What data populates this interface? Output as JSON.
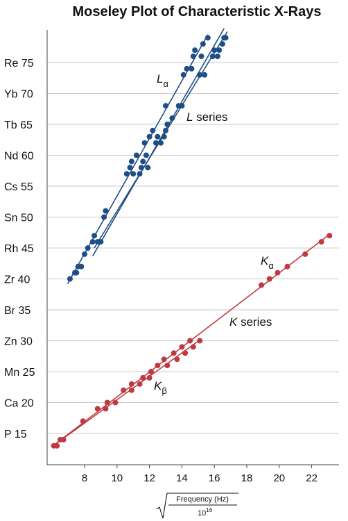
{
  "chart_data": {
    "type": "scatter",
    "title": "Moseley Plot of Characteristic X-Rays",
    "xlabel": {
      "numerator": "Frequency (Hz)",
      "denominator_base": "10",
      "denominator_exp": "16"
    },
    "xlim": [
      6,
      23.3
    ],
    "ylim": [
      11,
      83
    ],
    "x_ticks": [
      8,
      10,
      12,
      14,
      16,
      18,
      20,
      22
    ],
    "y_ticks": [
      {
        "value": 15,
        "label": "P 15"
      },
      {
        "value": 20,
        "label": "Ca 20"
      },
      {
        "value": 25,
        "label": "Mn 25"
      },
      {
        "value": 30,
        "label": "Zn 30"
      },
      {
        "value": 35,
        "label": "Br 35"
      },
      {
        "value": 40,
        "label": "Zr 40"
      },
      {
        "value": 45,
        "label": "Rh 45"
      },
      {
        "value": 50,
        "label": "Sn 50"
      },
      {
        "value": 55,
        "label": "Cs 55"
      },
      {
        "value": 60,
        "label": "Nd 60"
      },
      {
        "value": 65,
        "label": "Tb 65"
      },
      {
        "value": 70,
        "label": "Yb 70"
      },
      {
        "value": 75,
        "label": "Re 75"
      }
    ],
    "grid": "horizontal",
    "colors": {
      "l_series": "#1f4e86",
      "k_series": "#c0393e"
    },
    "annotations": {
      "l_alpha": {
        "main": "L",
        "sub": "α"
      },
      "l_series": {
        "italic": "L",
        "text": " series"
      },
      "k_alpha": {
        "main": "K",
        "sub": "α"
      },
      "k_series": {
        "italic": "K",
        "text": " series"
      },
      "k_beta": {
        "main": "K",
        "sub": "β"
      }
    },
    "series": [
      {
        "group": "L",
        "points": [
          [
            7.1,
            40
          ],
          [
            7.4,
            41
          ],
          [
            7.5,
            41
          ],
          [
            7.6,
            42
          ],
          [
            7.8,
            42
          ],
          [
            8.0,
            44
          ],
          [
            8.2,
            45
          ],
          [
            8.5,
            46
          ],
          [
            8.6,
            47
          ],
          [
            8.8,
            46
          ],
          [
            9.0,
            46
          ],
          [
            9.2,
            50
          ],
          [
            9.3,
            51
          ],
          [
            10.6,
            57
          ],
          [
            10.8,
            58
          ],
          [
            10.9,
            59
          ],
          [
            11.0,
            57
          ],
          [
            11.2,
            60
          ],
          [
            11.4,
            57
          ],
          [
            11.5,
            58
          ],
          [
            11.6,
            59
          ],
          [
            11.7,
            62
          ],
          [
            11.8,
            60
          ],
          [
            11.9,
            58
          ],
          [
            12.0,
            63
          ],
          [
            12.2,
            64
          ],
          [
            12.4,
            62
          ],
          [
            12.5,
            63
          ],
          [
            12.7,
            62
          ],
          [
            12.9,
            63
          ],
          [
            13.0,
            64
          ],
          [
            13.1,
            65
          ],
          [
            13.0,
            68
          ],
          [
            13.4,
            66
          ],
          [
            13.8,
            68
          ],
          [
            14.0,
            68
          ],
          [
            14.1,
            73
          ],
          [
            14.3,
            74
          ],
          [
            14.6,
            74
          ],
          [
            14.7,
            76
          ],
          [
            14.8,
            77
          ],
          [
            15.1,
            73
          ],
          [
            15.2,
            76
          ],
          [
            15.3,
            78
          ],
          [
            15.4,
            73
          ],
          [
            15.6,
            79
          ],
          [
            15.9,
            76
          ],
          [
            16.0,
            77
          ],
          [
            16.2,
            76
          ],
          [
            16.3,
            77
          ],
          [
            16.5,
            78
          ],
          [
            16.6,
            79
          ],
          [
            16.7,
            79
          ]
        ],
        "lines": [
          {
            "from": [
              6.95,
              39.2
            ],
            "to": [
              15.6,
              79.5
            ]
          },
          {
            "from": [
              8.5,
              43.7
            ],
            "to": [
              16.6,
              80.5
            ]
          },
          {
            "from": [
              8.6,
              45.0
            ],
            "to": [
              16.8,
              80.0
            ]
          }
        ]
      },
      {
        "group": "K",
        "points": [
          [
            6.1,
            13
          ],
          [
            6.3,
            13
          ],
          [
            6.5,
            14
          ],
          [
            6.7,
            14
          ],
          [
            7.9,
            17
          ],
          [
            8.8,
            19
          ],
          [
            9.3,
            19
          ],
          [
            9.4,
            20
          ],
          [
            9.9,
            20
          ],
          [
            10.4,
            22
          ],
          [
            10.9,
            23
          ],
          [
            10.9,
            22
          ],
          [
            11.4,
            23
          ],
          [
            11.6,
            24
          ],
          [
            12.0,
            24
          ],
          [
            12.1,
            25
          ],
          [
            12.5,
            26
          ],
          [
            12.9,
            27
          ],
          [
            13.1,
            26
          ],
          [
            13.5,
            28
          ],
          [
            13.7,
            27
          ],
          [
            14.0,
            29
          ],
          [
            14.2,
            28
          ],
          [
            14.5,
            30
          ],
          [
            14.7,
            29
          ],
          [
            15.1,
            30
          ],
          [
            18.9,
            39
          ],
          [
            19.4,
            40
          ],
          [
            19.9,
            41
          ],
          [
            20.5,
            42
          ],
          [
            21.6,
            44
          ],
          [
            22.6,
            46
          ],
          [
            23.1,
            47
          ]
        ],
        "lines": [
          {
            "from": [
              6.0,
              12.9
            ],
            "to": [
              23.1,
              47.2
            ]
          },
          {
            "from": [
              6.0,
              12.9
            ],
            "to": [
              15.2,
              30.3
            ]
          }
        ]
      }
    ]
  }
}
